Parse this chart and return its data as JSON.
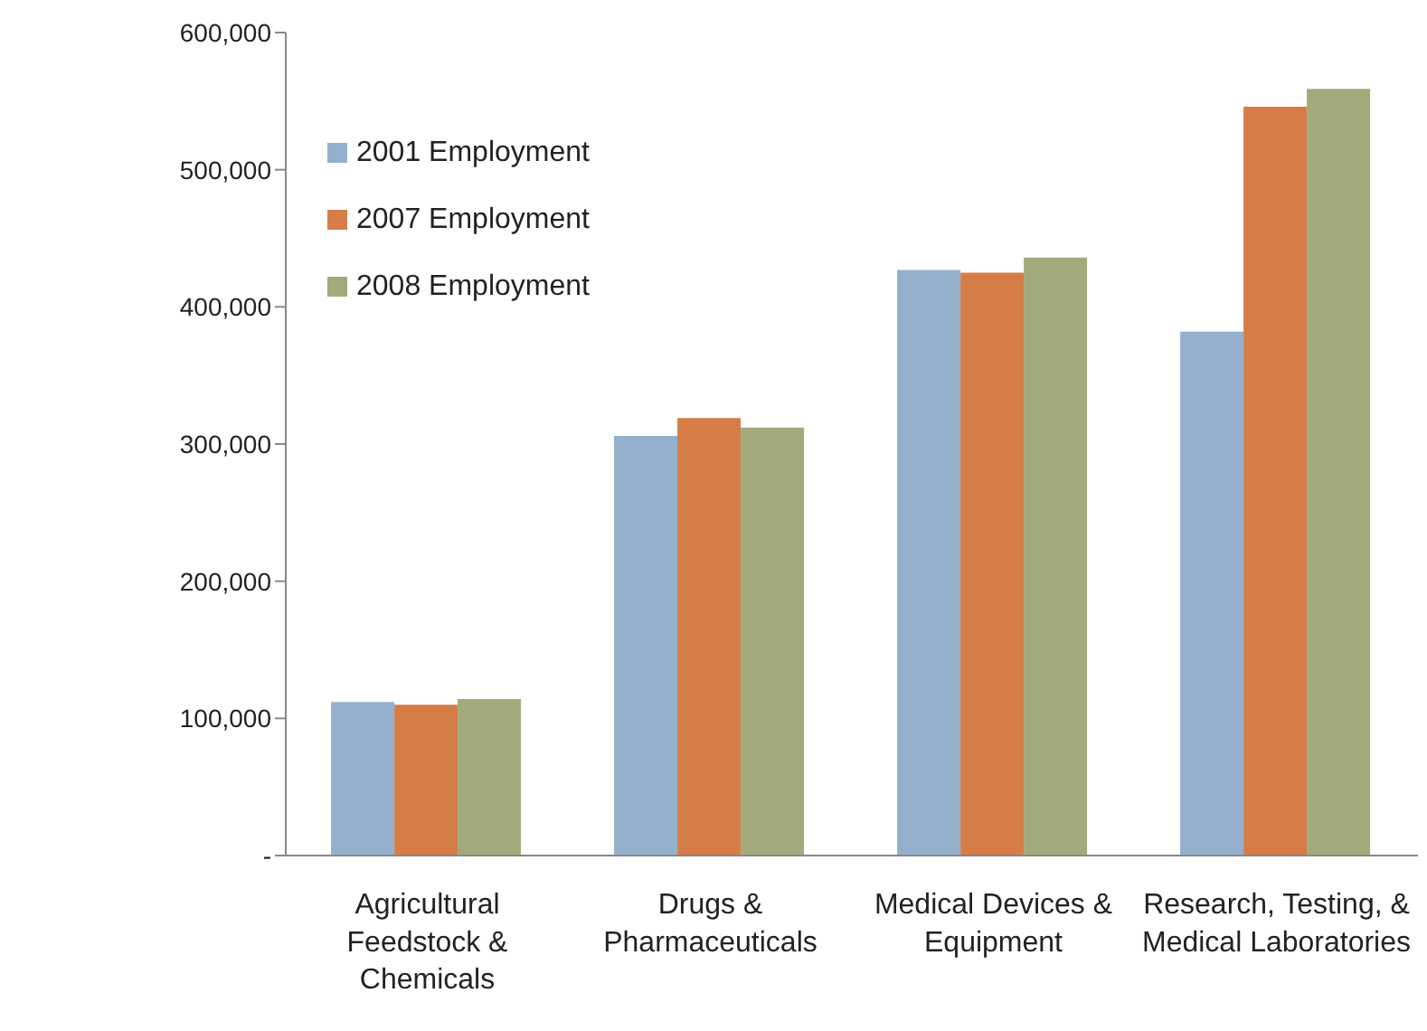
{
  "chart_data": {
    "type": "bar",
    "categories": [
      "Agricultural Feedstock & Chemicals",
      "Drugs & Pharmaceuticals",
      "Medical Devices & Equipment",
      "Research, Testing, & Medical Laboratories"
    ],
    "series": [
      {
        "name": "2001 Employment",
        "color": "#93b1cc",
        "values": [
          112000,
          306000,
          427000,
          382000
        ]
      },
      {
        "name": "2007 Employment",
        "color": "#d67d47",
        "values": [
          110000,
          319000,
          425000,
          546000
        ]
      },
      {
        "name": "2008 Employment",
        "color": "#a2aa7c",
        "values": [
          114000,
          312000,
          436000,
          559000
        ]
      }
    ],
    "ylim": [
      0,
      600000
    ],
    "yticks": [
      {
        "value": 0,
        "label": "-"
      },
      {
        "value": 100000,
        "label": "100,000"
      },
      {
        "value": 200000,
        "label": "200,000"
      },
      {
        "value": 300000,
        "label": "300,000"
      },
      {
        "value": 400000,
        "label": "400,000"
      },
      {
        "value": 500000,
        "label": "500,000"
      },
      {
        "value": 600000,
        "label": "600,000"
      }
    ],
    "grid": false,
    "legend": "top left"
  }
}
